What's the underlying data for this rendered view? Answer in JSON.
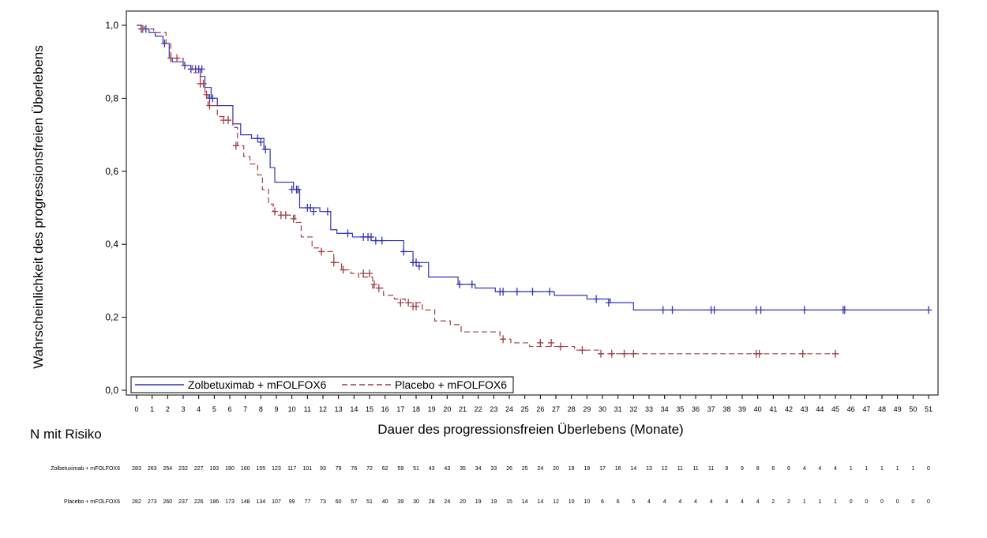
{
  "chart_data": {
    "type": "line",
    "title": "",
    "xlabel": "Dauer des progressionsfreien Überlebens (Monate)",
    "ylabel": "Wahrscheinlichkeit des progressionsfreien Überlebens",
    "xlim": [
      0,
      51
    ],
    "ylim": [
      0,
      1
    ],
    "x_ticks": [
      0,
      1,
      2,
      3,
      4,
      5,
      6,
      7,
      8,
      9,
      10,
      11,
      12,
      13,
      14,
      15,
      16,
      17,
      18,
      19,
      20,
      21,
      22,
      23,
      24,
      25,
      26,
      27,
      28,
      29,
      30,
      31,
      32,
      33,
      34,
      35,
      36,
      37,
      38,
      39,
      40,
      41,
      42,
      43,
      44,
      45,
      46,
      47,
      48,
      49,
      50,
      51
    ],
    "y_ticks": [
      "0,0",
      "0,2",
      "0,4",
      "0,6",
      "0,8",
      "1,0"
    ],
    "grid": false,
    "legend_position": "bottom-left",
    "series": [
      {
        "name": "Zolbetuximab + mFOLFOX6",
        "color": "#3333bb",
        "style": "solid",
        "step_x": [
          0,
          0.3,
          0.8,
          1.2,
          1.7,
          2.1,
          2.3,
          3.0,
          3.5,
          4.1,
          4.4,
          4.8,
          5.2,
          6.2,
          6.7,
          7.4,
          8.2,
          8.6,
          8.9,
          10.1,
          10.5,
          11.8,
          12.5,
          12.9,
          13.9,
          15.1,
          17.2,
          17.8,
          18.8,
          20.7,
          21.8,
          23.1,
          26.9,
          29.0,
          30.5,
          32.0,
          51.0
        ],
        "step_y": [
          1.0,
          0.99,
          0.98,
          0.97,
          0.95,
          0.91,
          0.9,
          0.89,
          0.88,
          0.86,
          0.83,
          0.8,
          0.78,
          0.73,
          0.7,
          0.69,
          0.66,
          0.61,
          0.57,
          0.55,
          0.5,
          0.49,
          0.44,
          0.43,
          0.42,
          0.41,
          0.38,
          0.35,
          0.31,
          0.29,
          0.28,
          0.27,
          0.26,
          0.25,
          0.24,
          0.22,
          0.22
        ],
        "censor_x": [
          0.3,
          0.6,
          1.8,
          3.1,
          3.5,
          3.8,
          4.0,
          4.2,
          4.7,
          4.9,
          7.8,
          8.0,
          8.3,
          10.0,
          10.3,
          10.4,
          11.0,
          11.2,
          11.4,
          12.3,
          13.6,
          14.6,
          14.9,
          15.1,
          15.4,
          15.8,
          17.2,
          17.8,
          18.0,
          18.2,
          20.8,
          21.6,
          23.4,
          23.6,
          24.5,
          25.5,
          26.6,
          29.6,
          30.4,
          33.9,
          34.5,
          37.0,
          37.2,
          39.9,
          40.2,
          43.0,
          45.5,
          45.6,
          51.0
        ],
        "censor_y": [
          0.99,
          0.99,
          0.95,
          0.89,
          0.88,
          0.88,
          0.88,
          0.88,
          0.8,
          0.8,
          0.69,
          0.68,
          0.66,
          0.55,
          0.55,
          0.55,
          0.5,
          0.5,
          0.49,
          0.49,
          0.43,
          0.42,
          0.42,
          0.42,
          0.41,
          0.41,
          0.38,
          0.35,
          0.35,
          0.34,
          0.29,
          0.29,
          0.27,
          0.27,
          0.27,
          0.27,
          0.27,
          0.25,
          0.24,
          0.22,
          0.22,
          0.22,
          0.22,
          0.22,
          0.22,
          0.22,
          0.22,
          0.22,
          0.22
        ]
      },
      {
        "name": "Placebo + mFOLFOX6",
        "color": "#a03c46",
        "style": "dashed",
        "step_x": [
          0,
          0.5,
          1.1,
          1.9,
          2.2,
          3.0,
          3.6,
          4.1,
          4.4,
          4.6,
          5.2,
          5.9,
          6.2,
          6.5,
          6.9,
          7.3,
          7.8,
          8.1,
          8.5,
          8.8,
          9.3,
          10.2,
          10.6,
          11.3,
          11.9,
          12.7,
          13.2,
          13.8,
          14.3,
          15.2,
          15.9,
          16.6,
          17.3,
          18.4,
          19.2,
          20.2,
          20.9,
          23.4,
          24.1,
          25.3,
          28.2,
          29.8,
          45.0
        ],
        "step_y": [
          1.0,
          0.99,
          0.98,
          0.95,
          0.91,
          0.89,
          0.87,
          0.84,
          0.81,
          0.78,
          0.75,
          0.74,
          0.72,
          0.67,
          0.64,
          0.62,
          0.59,
          0.55,
          0.51,
          0.49,
          0.48,
          0.46,
          0.42,
          0.39,
          0.38,
          0.35,
          0.33,
          0.32,
          0.31,
          0.28,
          0.26,
          0.25,
          0.24,
          0.22,
          0.19,
          0.18,
          0.16,
          0.14,
          0.13,
          0.12,
          0.11,
          0.1,
          0.1
        ],
        "censor_x": [
          0.4,
          2.2,
          2.6,
          4.1,
          4.3,
          4.5,
          4.7,
          5.6,
          5.9,
          6.4,
          8.9,
          9.3,
          9.6,
          10.1,
          11.9,
          12.7,
          13.3,
          14.6,
          15.0,
          15.3,
          15.6,
          17.0,
          17.5,
          17.8,
          18.0,
          23.6,
          26.0,
          26.7,
          27.3,
          28.7,
          29.9,
          30.6,
          31.4,
          32.0,
          39.9,
          40.1,
          42.9,
          45.0
        ],
        "censor_y": [
          0.99,
          0.91,
          0.91,
          0.84,
          0.84,
          0.81,
          0.78,
          0.74,
          0.74,
          0.67,
          0.49,
          0.48,
          0.48,
          0.47,
          0.38,
          0.35,
          0.33,
          0.32,
          0.32,
          0.29,
          0.28,
          0.24,
          0.24,
          0.23,
          0.23,
          0.14,
          0.13,
          0.13,
          0.12,
          0.11,
          0.1,
          0.1,
          0.1,
          0.1,
          0.1,
          0.1,
          0.1,
          0.1
        ]
      }
    ],
    "risk_table": {
      "title": "N mit Risiko",
      "rows": [
        {
          "label": "Zolbetuximab + mFOLFOX6",
          "values": [
            283,
            263,
            254,
            232,
            227,
            193,
            190,
            160,
            155,
            123,
            117,
            101,
            93,
            79,
            76,
            72,
            62,
            59,
            51,
            43,
            43,
            35,
            34,
            33,
            26,
            25,
            24,
            20,
            19,
            19,
            17,
            16,
            14,
            13,
            12,
            11,
            11,
            11,
            9,
            9,
            8,
            6,
            6,
            4,
            4,
            4,
            1,
            1,
            1,
            1,
            1,
            0
          ]
        },
        {
          "label": "Placebo + mFOLFOX6",
          "values": [
            282,
            273,
            260,
            237,
            226,
            186,
            173,
            148,
            134,
            107,
            99,
            77,
            73,
            60,
            57,
            51,
            40,
            39,
            30,
            28,
            24,
            20,
            19,
            19,
            15,
            14,
            14,
            12,
            10,
            10,
            6,
            6,
            5,
            4,
            4,
            4,
            4,
            4,
            4,
            4,
            4,
            2,
            2,
            1,
            1,
            1,
            0,
            0,
            0,
            0,
            0,
            0
          ]
        }
      ]
    }
  }
}
